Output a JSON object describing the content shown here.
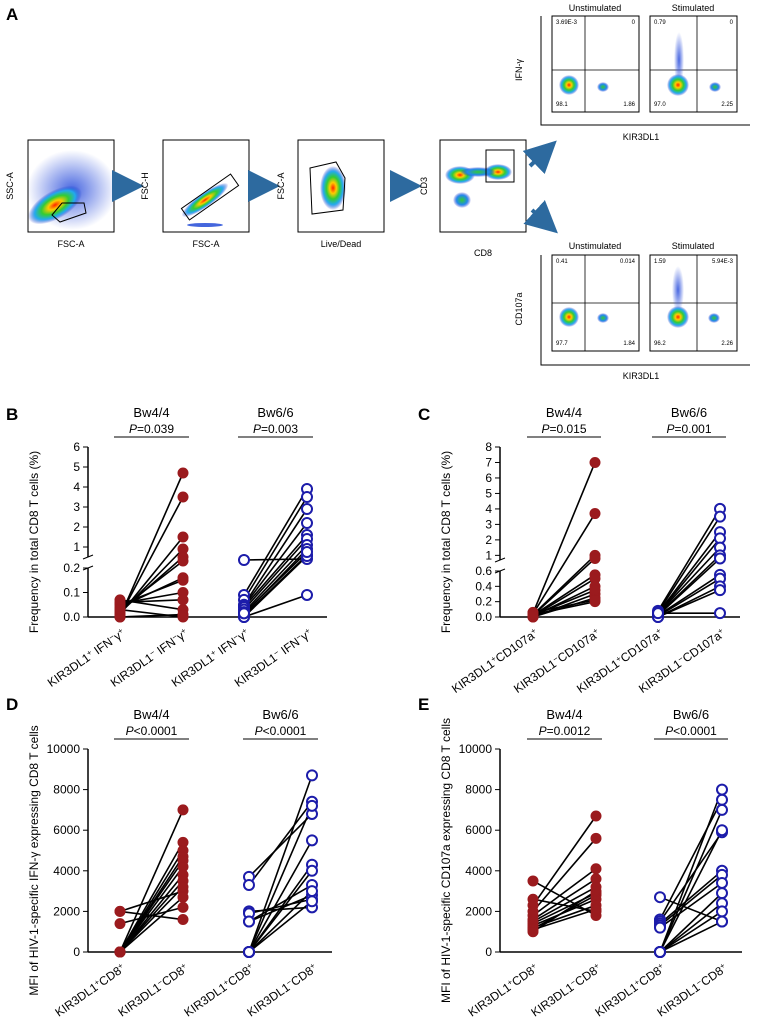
{
  "panel_labels": [
    "A",
    "B",
    "C",
    "D",
    "E"
  ],
  "flow": {
    "gates": [
      {
        "x_label": "FSC-A",
        "y_label": "SSC-A"
      },
      {
        "x_label": "FSC-A",
        "y_label": "FSC-H"
      },
      {
        "x_label": "Live/Dead",
        "y_label": "FSC-A"
      },
      {
        "x_label": "CD8",
        "y_label": "CD3"
      }
    ],
    "branches": [
      {
        "y_label": "IFN-γ",
        "x_label": "KIR3DL1",
        "plots": [
          {
            "title": "Unstimulated",
            "q_ul": "3.69E-3",
            "q_ur": "0",
            "q_ll": "98.1",
            "q_lr": "1.86"
          },
          {
            "title": "Stimulated",
            "q_ul": "0.79",
            "q_ur": "0",
            "q_ll": "97.0",
            "q_lr": "2.25"
          }
        ]
      },
      {
        "y_label": "CD107a",
        "x_label": "KIR3DL1",
        "plots": [
          {
            "title": "Unstimulated",
            "q_ul": "0.41",
            "q_ur": "0.014",
            "q_ll": "97.7",
            "q_lr": "1.84"
          },
          {
            "title": "Stimulated",
            "q_ul": "1.59",
            "q_ur": "5.94E-3",
            "q_ll": "96.2",
            "q_lr": "2.26"
          }
        ]
      }
    ]
  },
  "chart_data": [
    {
      "panel": "B",
      "type": "line",
      "ylabel": "Frequency in total CD8 T cells (%)",
      "yticks": [
        "0.0",
        "0.1",
        "0.2",
        "1",
        "2",
        "3",
        "4",
        "5",
        "6"
      ],
      "groups": [
        {
          "name": "Bw4/4",
          "pvalue_label": "P",
          "pvalue_text": "=0.039",
          "color": "#9b1b1e",
          "marker": "filled",
          "categories": [
            "KIR3DL1+ IFN-γ+",
            "KIR3DL1- IFN-γ+"
          ],
          "pairs": [
            [
              0.0,
              4.7
            ],
            [
              0.005,
              3.5
            ],
            [
              0.01,
              1.5
            ],
            [
              0.015,
              0.9
            ],
            [
              0.02,
              0.5
            ],
            [
              0.03,
              0.3
            ],
            [
              0.04,
              0.16
            ],
            [
              0.05,
              0.15
            ],
            [
              0.055,
              0.1
            ],
            [
              0.06,
              0.07
            ],
            [
              0.07,
              0.03
            ],
            [
              0.0,
              0.01
            ],
            [
              0.03,
              0.0
            ]
          ]
        },
        {
          "name": "Bw6/6",
          "pvalue_label": "P",
          "pvalue_text": "=0.003",
          "color": "#1c1caa",
          "marker": "open",
          "categories": [
            "KIR3DL1+ IFN-γ+",
            "KIR3DL1- IFN-γ+"
          ],
          "pairs": [
            [
              0.35,
              0.4
            ],
            [
              0.09,
              3.9
            ],
            [
              0.07,
              3.5
            ],
            [
              0.05,
              2.9
            ],
            [
              0.045,
              2.2
            ],
            [
              0.04,
              1.6
            ],
            [
              0.03,
              1.4
            ],
            [
              0.02,
              1.1
            ],
            [
              0.01,
              0.9
            ],
            [
              0.005,
              0.6
            ],
            [
              0.0,
              0.55
            ],
            [
              0.0,
              0.09
            ],
            [
              0.015,
              0.75
            ]
          ]
        }
      ]
    },
    {
      "panel": "C",
      "type": "line",
      "ylabel": "Frequency in total CD8 T cells (%)",
      "yticks": [
        "0.0",
        "0.2",
        "0.4",
        "0.6",
        "1",
        "2",
        "3",
        "4",
        "5",
        "6",
        "7",
        "8"
      ],
      "groups": [
        {
          "name": "Bw4/4",
          "pvalue_label": "P",
          "pvalue_text": "=0.015",
          "color": "#9b1b1e",
          "marker": "filled",
          "categories": [
            "KIR3DL1+CD107a+",
            "KIR3DL1-CD107a+"
          ],
          "pairs": [
            [
              0.05,
              7.0
            ],
            [
              0.04,
              3.7
            ],
            [
              0.03,
              1.0
            ],
            [
              0.02,
              0.8
            ],
            [
              0.02,
              0.55
            ],
            [
              0.01,
              0.5
            ],
            [
              0.01,
              0.4
            ],
            [
              0.0,
              0.3
            ],
            [
              0.0,
              0.25
            ],
            [
              0.03,
              0.2
            ],
            [
              0.06,
              0.22
            ],
            [
              0.02,
              0.35
            ]
          ]
        },
        {
          "name": "Bw6/6",
          "pvalue_label": "P",
          "pvalue_text": "=0.001",
          "color": "#1c1caa",
          "marker": "open",
          "categories": [
            "KIR3DL1+CD107a+",
            "KIR3DL1-CD107a+"
          ],
          "pairs": [
            [
              0.08,
              4.0
            ],
            [
              0.06,
              3.5
            ],
            [
              0.05,
              2.5
            ],
            [
              0.04,
              2.1
            ],
            [
              0.04,
              1.5
            ],
            [
              0.03,
              1.0
            ],
            [
              0.02,
              0.8
            ],
            [
              0.02,
              0.55
            ],
            [
              0.01,
              0.5
            ],
            [
              0.0,
              0.4
            ],
            [
              0.0,
              0.35
            ],
            [
              0.05,
              0.05
            ]
          ]
        }
      ]
    },
    {
      "panel": "D",
      "type": "line",
      "ylabel": "MFI of HIV-1-specific IFN-γ expressing CD8 T cells",
      "ylim": [
        0,
        10000
      ],
      "yticks": [
        "0",
        "2000",
        "4000",
        "6000",
        "8000",
        "10000"
      ],
      "groups": [
        {
          "name": "Bw4/4",
          "pvalue_label": "P",
          "pvalue_text": "<0.0001",
          "color": "#9b1b1e",
          "marker": "filled",
          "categories": [
            "KIR3DL1+CD8+",
            "KIR3DL1-CD8+"
          ],
          "pairs": [
            [
              2000,
              1600
            ],
            [
              1400,
              2200
            ],
            [
              2000,
              3000
            ],
            [
              0,
              7000
            ],
            [
              0,
              5400
            ],
            [
              0,
              5000
            ],
            [
              0,
              4700
            ],
            [
              0,
              4500
            ],
            [
              0,
              4200
            ],
            [
              0,
              3800
            ],
            [
              0,
              3500
            ],
            [
              0,
              3200
            ],
            [
              0,
              2700
            ]
          ]
        },
        {
          "name": "Bw6/6",
          "pvalue_label": "P",
          "pvalue_text": "<0.0001",
          "color": "#1c1caa",
          "marker": "open",
          "categories": [
            "KIR3DL1+CD8+",
            "KIR3DL1-CD8+"
          ],
          "pairs": [
            [
              3700,
              6800
            ],
            [
              3300,
              7400
            ],
            [
              2000,
              2200
            ],
            [
              1900,
              2600
            ],
            [
              1500,
              2800
            ],
            [
              1500,
              3300
            ],
            [
              0,
              8700
            ],
            [
              0,
              7200
            ],
            [
              0,
              5500
            ],
            [
              0,
              4300
            ],
            [
              0,
              4000
            ],
            [
              0,
              3000
            ],
            [
              0,
              2500
            ]
          ]
        }
      ]
    },
    {
      "panel": "E",
      "type": "line",
      "ylabel": "MFI of HIV-1-specific CD107a expressing CD8 T cells",
      "ylim": [
        0,
        10000
      ],
      "yticks": [
        "0",
        "2000",
        "4000",
        "6000",
        "8000",
        "10000"
      ],
      "groups": [
        {
          "name": "Bw4/4",
          "pvalue_label": "P",
          "pvalue_text": "=0.0012",
          "color": "#9b1b1e",
          "marker": "filled",
          "categories": [
            "KIR3DL1+CD8+",
            "KIR3DL1-CD8+"
          ],
          "pairs": [
            [
              3500,
              1800
            ],
            [
              2600,
              2000
            ],
            [
              2300,
              6700
            ],
            [
              2000,
              5600
            ],
            [
              1800,
              4100
            ],
            [
              1600,
              3600
            ],
            [
              1500,
              3200
            ],
            [
              1400,
              2900
            ],
            [
              1300,
              2600
            ],
            [
              1200,
              2300
            ],
            [
              1150,
              2800
            ],
            [
              1100,
              2100
            ],
            [
              1000,
              3000
            ]
          ]
        },
        {
          "name": "Bw6/6",
          "pvalue_label": "P",
          "pvalue_text": "<0.0001",
          "color": "#1c1caa",
          "marker": "open",
          "categories": [
            "KIR3DL1+CD8+",
            "KIR3DL1-CD8+"
          ],
          "pairs": [
            [
              2700,
              1500
            ],
            [
              1600,
              7500
            ],
            [
              1500,
              5900
            ],
            [
              1400,
              4000
            ],
            [
              1300,
              3800
            ],
            [
              1200,
              3400
            ],
            [
              0,
              8000
            ],
            [
              0,
              7000
            ],
            [
              0,
              6000
            ],
            [
              0,
              2900
            ],
            [
              0,
              2400
            ],
            [
              0,
              2000
            ],
            [
              0,
              1500
            ]
          ]
        }
      ]
    }
  ]
}
